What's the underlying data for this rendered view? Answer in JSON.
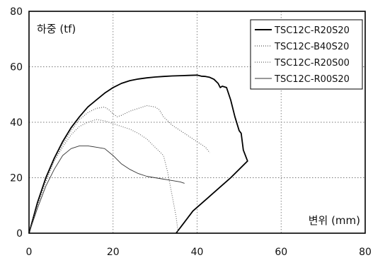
{
  "chart_data": {
    "type": "line",
    "title": "",
    "ylabel": "하중 (tf)",
    "xlabel": "변위 (mm)",
    "xlim": [
      0,
      80
    ],
    "ylim": [
      0,
      80
    ],
    "xticks": [
      "0",
      "20",
      "40",
      "60",
      "80"
    ],
    "yticks": [
      "0",
      "20",
      "40",
      "60",
      "80"
    ],
    "grid": "dotted",
    "legend_position": "top-right",
    "series": [
      {
        "name": "TSC12C-R20S20",
        "style": "solid",
        "color": "#000000",
        "points": [
          [
            0,
            0
          ],
          [
            2,
            11
          ],
          [
            4,
            20
          ],
          [
            6,
            27
          ],
          [
            8,
            33
          ],
          [
            10,
            38
          ],
          [
            12,
            42
          ],
          [
            14,
            45.5
          ],
          [
            16,
            48
          ],
          [
            18,
            50.5
          ],
          [
            20,
            52.5
          ],
          [
            22,
            54
          ],
          [
            24,
            55
          ],
          [
            26,
            55.6
          ],
          [
            28,
            56
          ],
          [
            30,
            56.3
          ],
          [
            32,
            56.5
          ],
          [
            34,
            56.7
          ],
          [
            36,
            56.8
          ],
          [
            38,
            56.9
          ],
          [
            40,
            57
          ],
          [
            41,
            56.6
          ],
          [
            42,
            56.5
          ],
          [
            43,
            56.2
          ],
          [
            44,
            55.5
          ],
          [
            45,
            54
          ],
          [
            45.5,
            52.5
          ],
          [
            46,
            53
          ],
          [
            47,
            52.5
          ],
          [
            48,
            48
          ],
          [
            49,
            42
          ],
          [
            50,
            37
          ],
          [
            50.5,
            36
          ],
          [
            51,
            30
          ],
          [
            52,
            26
          ],
          [
            51,
            24.5
          ],
          [
            48,
            20
          ],
          [
            45,
            16
          ],
          [
            42,
            12
          ],
          [
            39,
            8
          ],
          [
            37,
            4
          ],
          [
            35,
            0
          ]
        ]
      },
      {
        "name": "TSC12C-B40S20",
        "style": "dotted",
        "color": "#555555",
        "points": [
          [
            0,
            0
          ],
          [
            2,
            10
          ],
          [
            4,
            18.5
          ],
          [
            6,
            26
          ],
          [
            8,
            32
          ],
          [
            10,
            37
          ],
          [
            12,
            41
          ],
          [
            14,
            43.5
          ],
          [
            16,
            45
          ],
          [
            18,
            45.5
          ],
          [
            19,
            44.5
          ],
          [
            20,
            43
          ],
          [
            21,
            42
          ],
          [
            22,
            42.5
          ],
          [
            24,
            44
          ],
          [
            26,
            45
          ],
          [
            28,
            46
          ],
          [
            30,
            45.5
          ],
          [
            31,
            44.5
          ],
          [
            32,
            42
          ],
          [
            34,
            39
          ],
          [
            36,
            37
          ],
          [
            38,
            35
          ],
          [
            40,
            33
          ],
          [
            42,
            31
          ],
          [
            43,
            29
          ]
        ]
      },
      {
        "name": "TSC12C-R20S00",
        "style": "dotted",
        "color": "#666666",
        "points": [
          [
            0,
            0
          ],
          [
            2,
            10
          ],
          [
            4,
            19
          ],
          [
            6,
            26
          ],
          [
            8,
            31
          ],
          [
            10,
            35.5
          ],
          [
            12,
            38.5
          ],
          [
            14,
            40
          ],
          [
            16,
            41
          ],
          [
            18,
            40.5
          ],
          [
            20,
            39.5
          ],
          [
            22,
            38.5
          ],
          [
            24,
            37.5
          ],
          [
            26,
            36
          ],
          [
            28,
            34
          ],
          [
            30,
            31
          ],
          [
            32,
            28
          ],
          [
            33,
            22
          ],
          [
            34,
            14
          ],
          [
            35,
            6
          ],
          [
            35.5,
            0
          ]
        ]
      },
      {
        "name": "TSC12C-R00S20",
        "style": "solid-thin",
        "color": "#333333",
        "points": [
          [
            0,
            0
          ],
          [
            2,
            9
          ],
          [
            4,
            17
          ],
          [
            6,
            23
          ],
          [
            8,
            28
          ],
          [
            10,
            30.5
          ],
          [
            12,
            31.5
          ],
          [
            14,
            31.5
          ],
          [
            16,
            31
          ],
          [
            18,
            30.5
          ],
          [
            20,
            28
          ],
          [
            22,
            25
          ],
          [
            24,
            23
          ],
          [
            26,
            21.5
          ],
          [
            28,
            20.5
          ],
          [
            30,
            20
          ],
          [
            32,
            19.5
          ],
          [
            34,
            19
          ],
          [
            36,
            18.5
          ],
          [
            37,
            18
          ]
        ]
      }
    ]
  }
}
